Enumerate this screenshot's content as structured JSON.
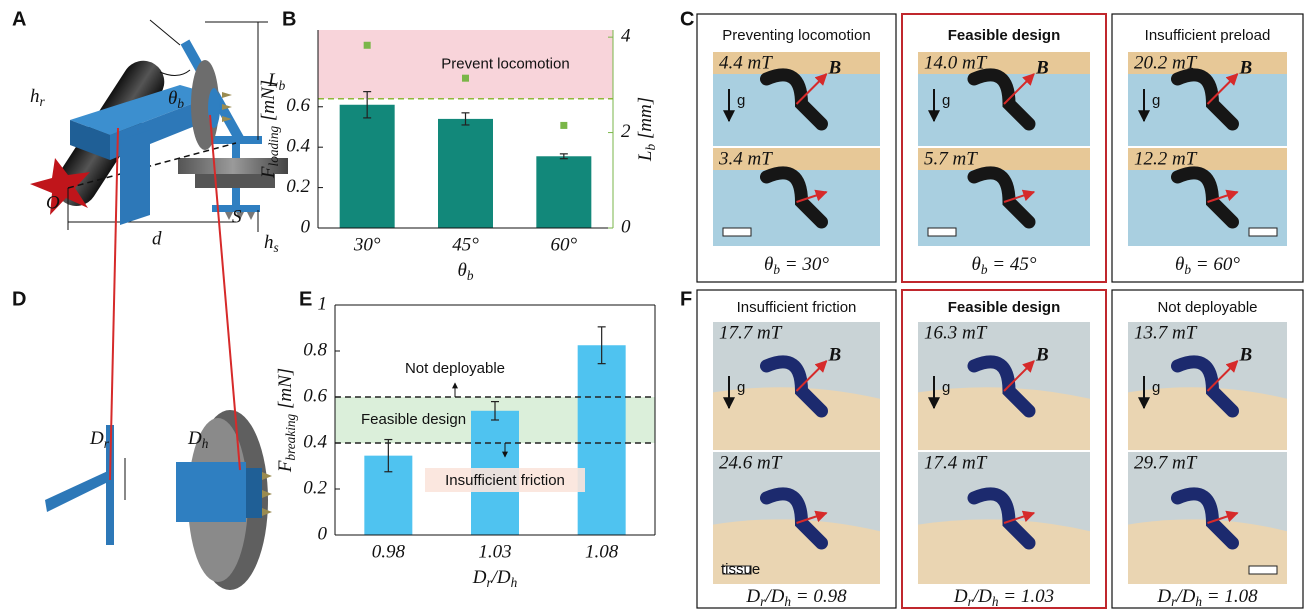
{
  "panels": {
    "a": {
      "label": "A",
      "h_r": [
        {
          "text": "h"
        },
        {
          "sub": "r"
        }
      ],
      "theta_b": [
        {
          "text": "θ"
        },
        {
          "sub": "b"
        }
      ],
      "L_b": [
        {
          "text": "L"
        },
        {
          "sub": "b"
        }
      ],
      "O": "O",
      "S": "S",
      "d": "d",
      "h_s": [
        {
          "text": "h"
        },
        {
          "sub": "s"
        }
      ]
    },
    "c": {
      "label": "C",
      "vector": "B",
      "gravity": "g",
      "columns": [
        {
          "title": "Preventing locomotion",
          "top_field": "4.4 mT",
          "bottom_field": "3.4 mT",
          "caption": [
            {
              "text": "θ"
            },
            {
              "sub": "b"
            },
            {
              "text": " = 30°"
            }
          ]
        },
        {
          "title": "Feasible design",
          "highlight": true,
          "top_field": "14.0 mT",
          "bottom_field": "5.7 mT",
          "caption": [
            {
              "text": "θ"
            },
            {
              "sub": "b"
            },
            {
              "text": " = 45°"
            }
          ]
        },
        {
          "title": "Insufficient preload",
          "top_field": "20.2 mT",
          "bottom_field": "12.2 mT",
          "caption": [
            {
              "text": "θ"
            },
            {
              "sub": "b"
            },
            {
              "text": " = 60°"
            }
          ]
        }
      ]
    },
    "d": {
      "label": "D",
      "D_r": [
        {
          "text": "D"
        },
        {
          "sub": "r"
        }
      ],
      "D_h": [
        {
          "text": "D"
        },
        {
          "sub": "h"
        }
      ]
    },
    "f": {
      "label": "F",
      "vector": "B",
      "gravity": "g",
      "tissue": "tissue",
      "columns": [
        {
          "title": "Insufficient friction",
          "top_field": "17.7 mT",
          "bottom_field": "24.6 mT",
          "caption": [
            {
              "text": "D"
            },
            {
              "sub": "r"
            },
            {
              "text": "/D"
            },
            {
              "sub": "h"
            },
            {
              "text": " = 0.98"
            }
          ]
        },
        {
          "title": "Feasible design",
          "highlight": true,
          "top_field": "16.3 mT",
          "bottom_field": "17.4 mT",
          "caption": [
            {
              "text": "D"
            },
            {
              "sub": "r"
            },
            {
              "text": "/D"
            },
            {
              "sub": "h"
            },
            {
              "text": " = 1.03"
            }
          ]
        },
        {
          "title": "Not deployable",
          "top_field": "13.7 mT",
          "bottom_field": "29.7 mT",
          "caption": [
            {
              "text": "D"
            },
            {
              "sub": "r"
            },
            {
              "text": "/D"
            },
            {
              "sub": "h"
            },
            {
              "text": " = 1.08"
            }
          ]
        }
      ]
    }
  },
  "chart_data": [
    {
      "type": "bar",
      "panel_label": "B",
      "categories": [
        "30°",
        "45°",
        "60°"
      ],
      "series": [
        {
          "values": [
            0.61,
            0.54,
            0.355
          ],
          "errors": [
            0.065,
            0.03,
            0.012
          ],
          "color": "#12887a"
        },
        {
          "values": [
            3.83,
            3.14,
            2.15
          ],
          "axis": "y2",
          "color": "#7ab648",
          "marker": "square"
        }
      ],
      "ylim": [
        0,
        0.98
      ],
      "yticks": [
        0,
        0.2,
        0.4,
        0.6
      ],
      "y2lim": [
        0,
        4.15
      ],
      "y2ticks": [
        0,
        2,
        4
      ],
      "y2color": "#7ab648",
      "xlabel": [
        {
          "text": "θ"
        },
        {
          "sub": "b"
        }
      ],
      "ylabel": [
        {
          "text": "F"
        },
        {
          "sub": "loading"
        },
        {
          "text": " [mN]"
        }
      ],
      "y2label": [
        {
          "text": "L"
        },
        {
          "sub": "b"
        },
        {
          "text": " [mm]"
        }
      ],
      "regions": [
        {
          "from": 0.64,
          "to": 0.98,
          "color": "#f7cdd3",
          "label": "Prevent locomotion"
        }
      ],
      "hlines": [
        {
          "value": 0.64,
          "color": "#8fb83a"
        }
      ]
    },
    {
      "type": "bar",
      "panel_label": "E",
      "categories": [
        "0.98",
        "1.03",
        "1.08"
      ],
      "series": [
        {
          "values": [
            0.345,
            0.54,
            0.825
          ],
          "errors": [
            0.07,
            0.04,
            0.08
          ],
          "color": "#4fc3f0"
        }
      ],
      "ylim": [
        0,
        1
      ],
      "yticks": [
        0,
        0.2,
        0.4,
        0.6,
        0.8,
        1
      ],
      "frame": true,
      "xlabel": [
        {
          "text": "D"
        },
        {
          "sub": "r"
        },
        {
          "text": "/D"
        },
        {
          "sub": "h"
        }
      ],
      "ylabel": [
        {
          "text": "F"
        },
        {
          "sub": "breaking"
        },
        {
          "text": " [mN]"
        }
      ],
      "regions": [
        {
          "from": 0.4,
          "to": 0.6,
          "color": "#d5ecd3",
          "label": "Feasible design"
        }
      ],
      "hlines": [
        {
          "value": 0.4,
          "color": "#222"
        },
        {
          "value": 0.6,
          "color": "#222"
        }
      ],
      "annotations": [
        {
          "text": "Not deployable",
          "direction": "up",
          "at": 0.6
        },
        {
          "text": "Insufficient friction",
          "direction": "down",
          "at": 0.4
        }
      ]
    }
  ]
}
